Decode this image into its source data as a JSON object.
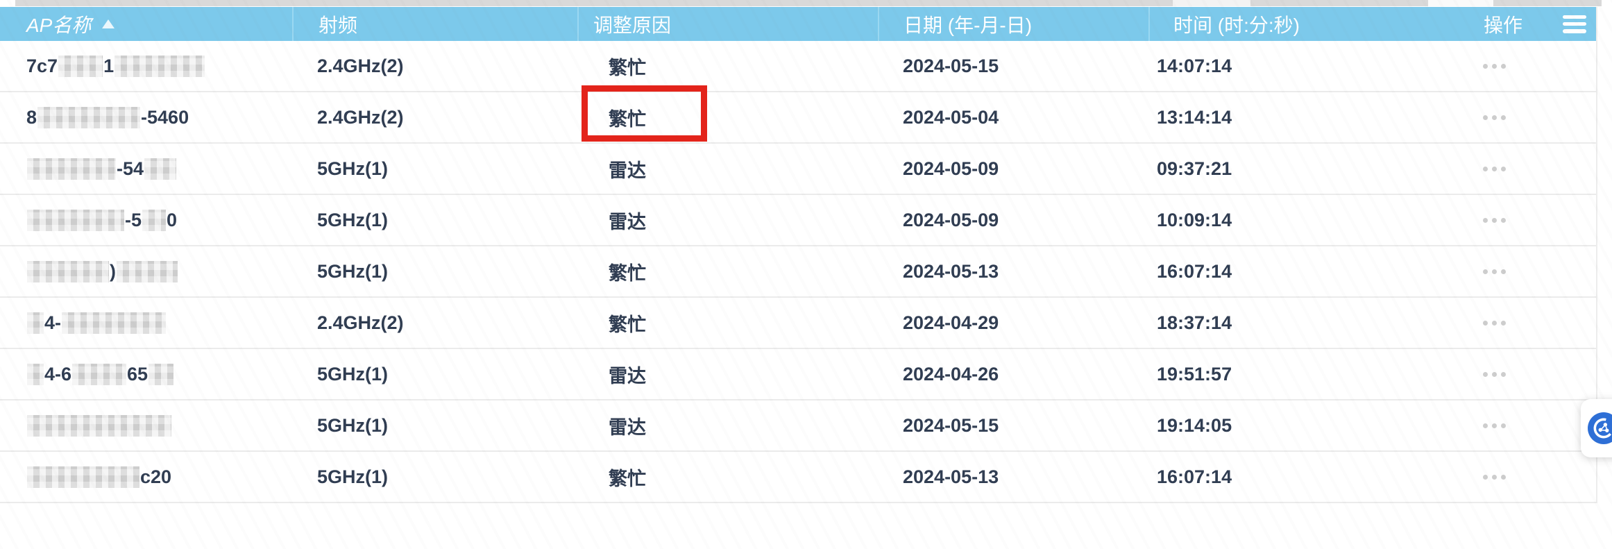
{
  "table": {
    "columns": [
      {
        "key": "ap_name",
        "label": "AP名称",
        "sortable": true,
        "sort_direction": "asc"
      },
      {
        "key": "radio",
        "label": "射频",
        "sortable": false
      },
      {
        "key": "reason",
        "label": "调整原因",
        "sortable": false
      },
      {
        "key": "date",
        "label": "日期 (年-月-日)",
        "sortable": false
      },
      {
        "key": "time",
        "label": "时间 (时:分:秒)",
        "sortable": false
      },
      {
        "key": "actions",
        "label": "操作",
        "sortable": false
      }
    ],
    "rows": [
      {
        "name_segments": [
          {
            "text": "7c7"
          },
          {
            "blur": 64
          },
          {
            "text": "1"
          },
          {
            "blur": 130
          }
        ],
        "radio": "2.4GHz(2)",
        "reason": "繁忙",
        "date": "2024-05-15",
        "time": "14:07:14"
      },
      {
        "name_segments": [
          {
            "text": "8"
          },
          {
            "blur": 148
          },
          {
            "text": "-5460"
          }
        ],
        "radio": "2.4GHz(2)",
        "reason": "繁忙",
        "date": "2024-05-04",
        "time": "13:14:14"
      },
      {
        "name_segments": [
          {
            "blur": 128
          },
          {
            "text": "-54"
          },
          {
            "blur": 46
          }
        ],
        "radio": "5GHz(1)",
        "reason": "雷达",
        "date": "2024-05-09",
        "time": "09:37:21"
      },
      {
        "name_segments": [
          {
            "blur": 140
          },
          {
            "text": "-5"
          },
          {
            "blur": 34
          },
          {
            "text": "0"
          }
        ],
        "radio": "5GHz(1)",
        "reason": "雷达",
        "date": "2024-05-09",
        "time": "10:09:14"
      },
      {
        "name_segments": [
          {
            "blur": 118
          },
          {
            "text": ")"
          },
          {
            "blur": 88
          }
        ],
        "radio": "5GHz(1)",
        "reason": "繁忙",
        "date": "2024-05-13",
        "time": "16:07:14"
      },
      {
        "name_segments": [
          {
            "blur": 24
          },
          {
            "text": "4-"
          },
          {
            "blur": 150
          }
        ],
        "radio": "2.4GHz(2)",
        "reason": "繁忙",
        "date": "2024-04-29",
        "time": "18:37:14"
      },
      {
        "name_segments": [
          {
            "blur": 24
          },
          {
            "text": "4-6"
          },
          {
            "blur": 78
          },
          {
            "text": "65"
          },
          {
            "blur": 36
          }
        ],
        "radio": "5GHz(1)",
        "reason": "雷达",
        "date": "2024-04-26",
        "time": "19:51:57"
      },
      {
        "name_segments": [
          {
            "blur": 208
          }
        ],
        "radio": "5GHz(1)",
        "reason": "雷达",
        "date": "2024-05-15",
        "time": "19:14:05"
      },
      {
        "name_segments": [
          {
            "blur": 162
          },
          {
            "text": "c20"
          }
        ],
        "radio": "5GHz(1)",
        "reason": "繁忙",
        "date": "2024-05-13",
        "time": "16:07:14"
      }
    ]
  },
  "annotation": {
    "shape": "rectangle",
    "color": "#E3241B",
    "marked_row_index": 1,
    "marked_column": "reason",
    "marked_value": "繁忙"
  },
  "icons": {
    "sort_ascending": "triangle-up",
    "column_settings": "list-lines",
    "row_actions": "ellipsis",
    "floating_button": "network-assistant"
  },
  "colors": {
    "header_background": "#7CC9EB",
    "header_text": "#FFFFFF",
    "cell_text": "#303D52",
    "row_divider": "#EBEBEB",
    "annotation_red": "#E3241B",
    "action_dots": "#CDCDCD",
    "floating_icon_blue": "#2E6FD6",
    "page_background": "#FFFFFF"
  }
}
